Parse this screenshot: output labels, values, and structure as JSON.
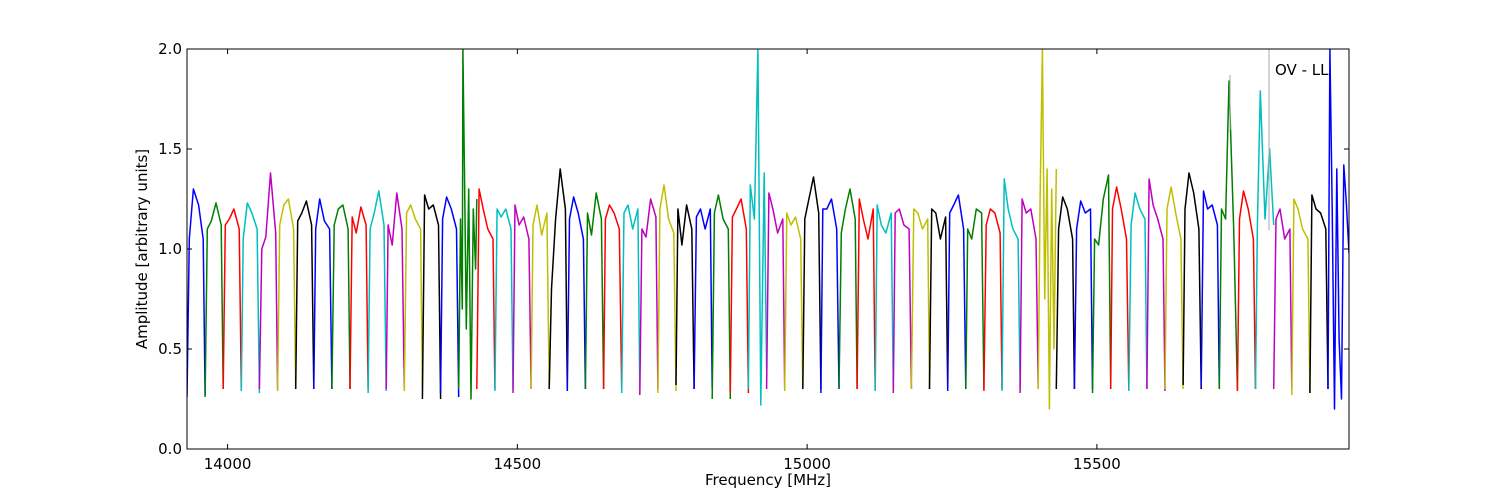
{
  "chart_data": {
    "type": "line",
    "xlabel": "Frequency [MHz]",
    "ylabel": "Amplitude [arbitrary units]",
    "annotation": "OV - LL",
    "xlim": [
      13930,
      15935
    ],
    "ylim": [
      0.0,
      2.0
    ],
    "x_ticks": [
      14000,
      14500,
      15000,
      15500
    ],
    "x_tick_labels": [
      "14000",
      "14500",
      "15000",
      "15500"
    ],
    "y_ticks": [
      0.0,
      0.5,
      1.0,
      1.5,
      2.0
    ],
    "y_tick_labels": [
      "0.0",
      "0.5",
      "1.0",
      "1.5",
      "2.0"
    ],
    "grid": false,
    "band_width_mhz": 31.25,
    "color_cycle": [
      "#0000ff",
      "#007f00",
      "#ff0000",
      "#00bfbf",
      "#bf00bf",
      "#bfbf00",
      "#000000"
    ],
    "segments": [
      {
        "x": [
          13930,
          13934,
          13941,
          13950,
          13958,
          13961.25
        ],
        "y": [
          0.26,
          1.05,
          1.3,
          1.22,
          1.05,
          0.27
        ]
      },
      {
        "x": [
          13961.25,
          13965,
          13972,
          13980,
          13989,
          13992.5
        ],
        "y": [
          0.26,
          1.1,
          1.14,
          1.23,
          1.12,
          0.3
        ]
      },
      {
        "x": [
          13992.5,
          13996,
          14003,
          14011,
          14020,
          14023.75
        ],
        "y": [
          0.3,
          1.12,
          1.15,
          1.2,
          1.1,
          0.3
        ]
      },
      {
        "x": [
          14023.75,
          14027,
          14034,
          14042,
          14051,
          14055
        ],
        "y": [
          0.29,
          1.05,
          1.23,
          1.18,
          1.1,
          0.28
        ]
      },
      {
        "x": [
          14055,
          14059,
          14066,
          14074,
          14083,
          14086.25
        ],
        "y": [
          0.3,
          1.0,
          1.06,
          1.38,
          1.08,
          0.3
        ]
      },
      {
        "x": [
          14086.25,
          14090,
          14097,
          14105,
          14114,
          14117.5
        ],
        "y": [
          0.29,
          1.12,
          1.22,
          1.25,
          1.1,
          0.3
        ]
      },
      {
        "x": [
          14117.5,
          14121,
          14128,
          14136,
          14145,
          14148.75
        ],
        "y": [
          0.3,
          1.14,
          1.18,
          1.24,
          1.12,
          0.3
        ]
      },
      {
        "x": [
          14148.75,
          14152,
          14159,
          14167,
          14176,
          14180
        ],
        "y": [
          0.3,
          1.1,
          1.25,
          1.14,
          1.1,
          0.3
        ]
      },
      {
        "x": [
          14180,
          14184,
          14191,
          14199,
          14208,
          14211.25
        ],
        "y": [
          0.3,
          1.12,
          1.2,
          1.22,
          1.1,
          0.3
        ]
      },
      {
        "x": [
          14211.25,
          14215,
          14222,
          14230,
          14239,
          14242.5
        ],
        "y": [
          0.3,
          1.16,
          1.08,
          1.21,
          1.12,
          0.3
        ]
      },
      {
        "x": [
          14242.5,
          14246,
          14253,
          14261,
          14270,
          14273.75
        ],
        "y": [
          0.28,
          1.1,
          1.18,
          1.29,
          1.12,
          0.29
        ]
      },
      {
        "x": [
          14273.75,
          14277,
          14284,
          14292,
          14301,
          14305
        ],
        "y": [
          0.3,
          1.12,
          1.02,
          1.28,
          1.1,
          0.3
        ]
      },
      {
        "x": [
          14305,
          14309,
          14316,
          14324,
          14333,
          14336.25
        ],
        "y": [
          0.29,
          1.18,
          1.22,
          1.15,
          1.1,
          0.3
        ]
      },
      {
        "x": [
          14336.25,
          14340,
          14347,
          14355,
          14364,
          14367.5
        ],
        "y": [
          0.25,
          1.27,
          1.2,
          1.22,
          1.12,
          0.25
        ]
      },
      {
        "x": [
          14367.5,
          14371,
          14378,
          14386,
          14395,
          14398.75
        ],
        "y": [
          0.28,
          1.15,
          1.26,
          1.2,
          1.1,
          0.26
        ]
      },
      {
        "x": [
          14398.75,
          14402,
          14405,
          14406,
          14409,
          14412,
          14416,
          14420,
          14424,
          14428,
          14430
        ],
        "y": [
          0.3,
          1.15,
          0.7,
          2.0,
          1.33,
          0.6,
          1.3,
          0.25,
          1.2,
          0.9,
          1.25
        ]
      },
      {
        "x": [
          14430,
          14434,
          14441,
          14449,
          14458,
          14461.25
        ],
        "y": [
          0.3,
          1.3,
          1.2,
          1.1,
          1.05,
          0.3
        ]
      },
      {
        "x": [
          14461.25,
          14465,
          14472,
          14480,
          14489,
          14492.5
        ],
        "y": [
          0.29,
          1.2,
          1.16,
          1.2,
          1.1,
          0.3
        ]
      },
      {
        "x": [
          14492.5,
          14496,
          14503,
          14511,
          14520,
          14523.75
        ],
        "y": [
          0.28,
          1.22,
          1.12,
          1.16,
          1.05,
          0.3
        ]
      },
      {
        "x": [
          14523.75,
          14527,
          14534,
          14542,
          14551,
          14555
        ],
        "y": [
          0.3,
          1.12,
          1.22,
          1.07,
          1.18,
          0.3
        ]
      },
      {
        "x": [
          14555,
          14559,
          14566,
          14574,
          14583,
          14586.25
        ],
        "y": [
          0.3,
          0.8,
          1.15,
          1.4,
          1.2,
          0.3
        ]
      },
      {
        "x": [
          14586.25,
          14590,
          14597,
          14605,
          14614,
          14617.5
        ],
        "y": [
          0.29,
          1.15,
          1.26,
          1.18,
          1.05,
          0.3
        ]
      },
      {
        "x": [
          14617.5,
          14621,
          14628,
          14636,
          14645,
          14648.75
        ],
        "y": [
          0.3,
          1.18,
          1.07,
          1.28,
          1.15,
          0.3
        ]
      },
      {
        "x": [
          14648.75,
          14652,
          14659,
          14667,
          14676,
          14680
        ],
        "y": [
          0.3,
          1.15,
          1.22,
          1.18,
          1.1,
          0.3
        ]
      },
      {
        "x": [
          14680,
          14684,
          14691,
          14699,
          14708,
          14711.25
        ],
        "y": [
          0.28,
          1.18,
          1.22,
          1.1,
          1.2,
          0.3
        ]
      },
      {
        "x": [
          14711.25,
          14715,
          14722,
          14730,
          14739,
          14742.5
        ],
        "y": [
          0.27,
          1.1,
          1.06,
          1.25,
          1.16,
          0.3
        ]
      },
      {
        "x": [
          14742.5,
          14746,
          14753,
          14761,
          14770,
          14773.75
        ],
        "y": [
          0.28,
          1.2,
          1.32,
          1.15,
          1.08,
          0.29
        ]
      },
      {
        "x": [
          14773.75,
          14777,
          14784,
          14792,
          14801,
          14805
        ],
        "y": [
          0.32,
          1.2,
          1.02,
          1.22,
          1.1,
          0.3
        ]
      },
      {
        "x": [
          14805,
          14809,
          14816,
          14824,
          14833,
          14836.25
        ],
        "y": [
          0.3,
          1.16,
          1.2,
          1.1,
          1.2,
          0.3
        ]
      },
      {
        "x": [
          14836.25,
          14840,
          14847,
          14855,
          14864,
          14867.5
        ],
        "y": [
          0.25,
          1.18,
          1.27,
          1.15,
          1.1,
          0.25
        ]
      },
      {
        "x": [
          14867.5,
          14871,
          14878,
          14886,
          14895,
          14898.75
        ],
        "y": [
          0.28,
          1.16,
          1.2,
          1.25,
          1.1,
          0.28
        ]
      },
      {
        "x": [
          14898.75,
          14902,
          14909,
          14915,
          14920,
          14926,
          14930
        ],
        "y": [
          0.3,
          1.32,
          1.15,
          2.0,
          0.22,
          1.38,
          0.4
        ]
      },
      {
        "x": [
          14930,
          14934,
          14941,
          14949,
          14958,
          14961.25
        ],
        "y": [
          0.3,
          1.28,
          1.2,
          1.08,
          1.15,
          0.3
        ]
      },
      {
        "x": [
          14961.25,
          14965,
          14972,
          14980,
          14989,
          14992.5
        ],
        "y": [
          0.29,
          1.18,
          1.12,
          1.16,
          1.05,
          0.3
        ]
      },
      {
        "x": [
          14992.5,
          14996,
          15003,
          15011,
          15020,
          15023.75
        ],
        "y": [
          0.3,
          1.15,
          1.25,
          1.36,
          1.18,
          0.3
        ]
      },
      {
        "x": [
          15023.75,
          15027,
          15034,
          15042,
          15051,
          15055
        ],
        "y": [
          0.28,
          1.2,
          1.2,
          1.25,
          1.1,
          0.3
        ]
      },
      {
        "x": [
          15055,
          15059,
          15066,
          15074,
          15083,
          15086.25
        ],
        "y": [
          0.3,
          1.08,
          1.2,
          1.3,
          1.15,
          0.3
        ]
      },
      {
        "x": [
          15086.25,
          15090,
          15097,
          15105,
          15114,
          15117.5
        ],
        "y": [
          0.3,
          1.25,
          1.15,
          1.05,
          1.2,
          0.29
        ]
      },
      {
        "x": [
          15117.5,
          15121,
          15128,
          15136,
          15145,
          15148.75
        ],
        "y": [
          0.29,
          1.22,
          1.12,
          1.08,
          1.18,
          0.3
        ]
      },
      {
        "x": [
          15148.75,
          15152,
          15159,
          15167,
          15176,
          15180
        ],
        "y": [
          0.28,
          1.18,
          1.2,
          1.12,
          1.1,
          0.3
        ]
      },
      {
        "x": [
          15180,
          15184,
          15191,
          15199,
          15208,
          15211.25
        ],
        "y": [
          0.3,
          1.2,
          1.18,
          1.1,
          1.15,
          0.3
        ]
      },
      {
        "x": [
          15211.25,
          15215,
          15222,
          15230,
          15239,
          15242.5
        ],
        "y": [
          0.3,
          1.2,
          1.18,
          1.05,
          1.16,
          0.3
        ]
      },
      {
        "x": [
          15242.5,
          15246,
          15253,
          15261,
          15270,
          15273.75
        ],
        "y": [
          0.29,
          1.18,
          1.22,
          1.27,
          1.1,
          0.3
        ]
      },
      {
        "x": [
          15273.75,
          15277,
          15284,
          15292,
          15301,
          15305
        ],
        "y": [
          0.3,
          1.1,
          1.05,
          1.2,
          1.18,
          0.3
        ]
      },
      {
        "x": [
          15305,
          15309,
          15316,
          15324,
          15333,
          15336.25
        ],
        "y": [
          0.29,
          1.12,
          1.2,
          1.18,
          1.08,
          0.3
        ]
      },
      {
        "x": [
          15336.25,
          15340,
          15347,
          15355,
          15364,
          15367.5
        ],
        "y": [
          0.29,
          1.35,
          1.2,
          1.1,
          1.05,
          0.3
        ]
      },
      {
        "x": [
          15367.5,
          15371,
          15378,
          15386,
          15395,
          15398.75
        ],
        "y": [
          0.28,
          1.25,
          1.18,
          1.2,
          1.05,
          0.3
        ]
      },
      {
        "x": [
          15398.75,
          15402,
          15406,
          15410,
          15414,
          15418,
          15422,
          15426,
          15430
        ],
        "y": [
          0.3,
          1.25,
          2.0,
          0.75,
          1.4,
          0.2,
          1.3,
          0.5,
          1.4
        ]
      },
      {
        "x": [
          15430,
          15434,
          15441,
          15449,
          15458,
          15461.25
        ],
        "y": [
          0.3,
          1.1,
          1.26,
          1.2,
          1.05,
          0.3
        ]
      },
      {
        "x": [
          15461.25,
          15465,
          15472,
          15480,
          15489,
          15492.5
        ],
        "y": [
          0.3,
          1.1,
          1.24,
          1.18,
          1.2,
          0.3
        ]
      },
      {
        "x": [
          15492.5,
          15496,
          15503,
          15511,
          15520,
          15523.75
        ],
        "y": [
          0.28,
          1.05,
          1.02,
          1.25,
          1.37,
          0.3
        ]
      },
      {
        "x": [
          15523.75,
          15527,
          15534,
          15542,
          15551,
          15555
        ],
        "y": [
          0.3,
          1.2,
          1.31,
          1.2,
          1.05,
          0.3
        ]
      },
      {
        "x": [
          15555,
          15559,
          15566,
          15574,
          15583,
          15586.25
        ],
        "y": [
          0.29,
          1.12,
          1.28,
          1.2,
          1.15,
          0.3
        ]
      },
      {
        "x": [
          15586.25,
          15590,
          15597,
          15605,
          15614,
          15617.5
        ],
        "y": [
          0.3,
          1.35,
          1.22,
          1.15,
          1.05,
          0.29
        ]
      },
      {
        "x": [
          15617.5,
          15621,
          15628,
          15636,
          15645,
          15648.75
        ],
        "y": [
          0.3,
          1.2,
          1.31,
          1.18,
          1.05,
          0.3
        ]
      },
      {
        "x": [
          15648.75,
          15652,
          15659,
          15667,
          15676,
          15680
        ],
        "y": [
          0.32,
          1.2,
          1.38,
          1.28,
          1.1,
          0.3
        ]
      },
      {
        "x": [
          15680,
          15684,
          15691,
          15699,
          15708,
          15711.25
        ],
        "y": [
          0.31,
          1.29,
          1.2,
          1.22,
          1.12,
          0.3
        ]
      },
      {
        "x": [
          15711.25,
          15715,
          15722,
          15728,
          15736,
          15742.5
        ],
        "y": [
          0.3,
          1.2,
          1.15,
          1.84,
          1.1,
          0.3
        ]
      },
      {
        "x": [
          15742.5,
          15746,
          15753,
          15761,
          15770,
          15773.75
        ],
        "y": [
          0.29,
          1.15,
          1.29,
          1.2,
          1.05,
          0.3
        ]
      },
      {
        "x": [
          15773.75,
          15777,
          15782,
          15790,
          15798,
          15805
        ],
        "y": [
          0.3,
          1.12,
          1.79,
          1.15,
          1.5,
          1.12
        ]
      },
      {
        "x": [
          15805,
          15809,
          15816,
          15824,
          15833,
          15836.25
        ],
        "y": [
          0.3,
          1.15,
          1.2,
          1.05,
          1.1,
          0.3
        ]
      },
      {
        "x": [
          15836.25,
          15840,
          15847,
          15855,
          15864,
          15867.5
        ],
        "y": [
          0.27,
          1.25,
          1.2,
          1.1,
          1.05,
          0.28
        ]
      },
      {
        "x": [
          15867.5,
          15871,
          15878,
          15886,
          15895,
          15898.75
        ],
        "y": [
          0.28,
          1.27,
          1.2,
          1.18,
          1.1,
          0.3
        ]
      },
      {
        "x": [
          15898.75,
          15902,
          15906,
          15910,
          15914,
          15918,
          15922,
          15926,
          15930,
          15935
        ],
        "y": [
          0.3,
          2.0,
          1.2,
          0.2,
          1.4,
          0.55,
          0.25,
          1.42,
          1.25,
          0.98
        ]
      }
    ]
  }
}
